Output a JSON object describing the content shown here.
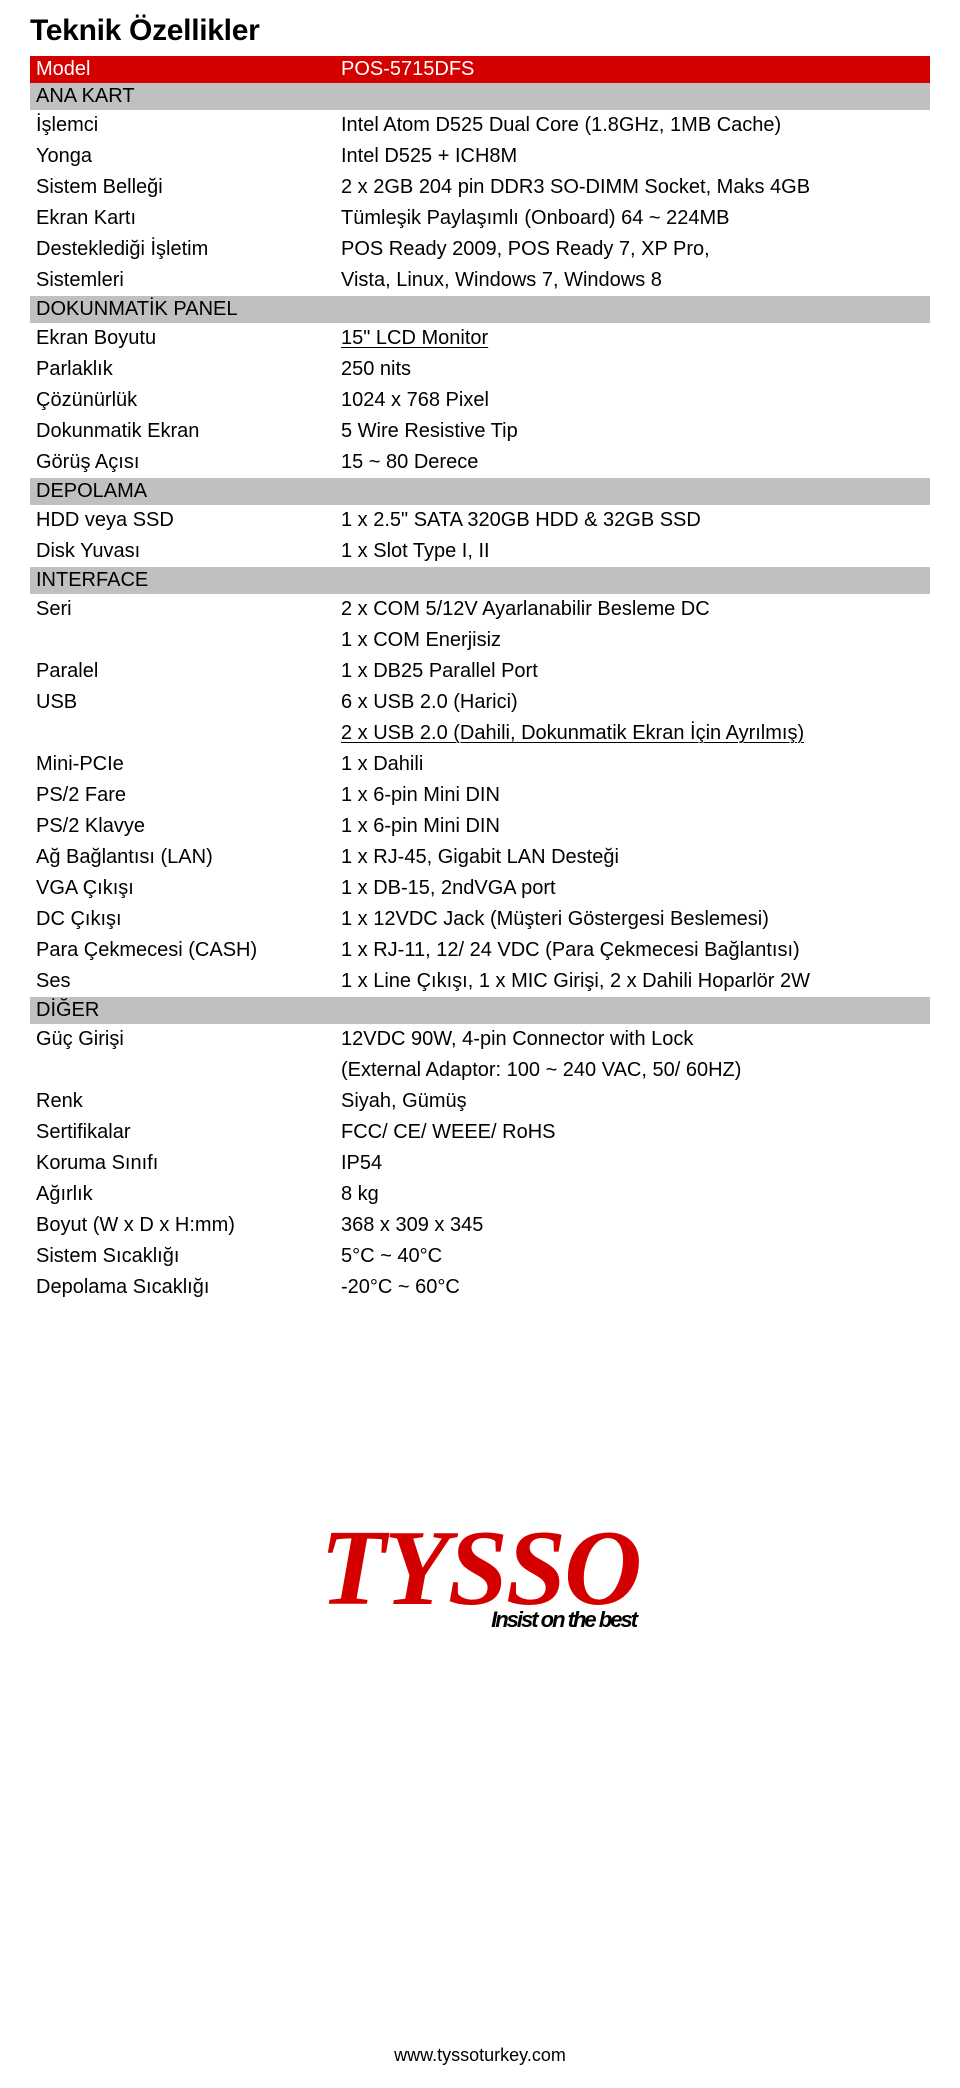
{
  "title": "Teknik Özellikler",
  "header": {
    "label": "Model",
    "value": "POS-5715DFS"
  },
  "sections": [
    {
      "name": "ANA KART",
      "rows": [
        {
          "label": "İşlemci",
          "value": "Intel Atom D525 Dual Core (1.8GHz, 1MB Cache)"
        },
        {
          "label": "Yonga",
          "value": "Intel D525 + ICH8M"
        },
        {
          "label": "Sistem Belleği",
          "value": "2 x 2GB 204 pin DDR3 SO-DIMM Socket, Maks 4GB"
        },
        {
          "label": "Ekran Kartı",
          "value": "Tümleşik Paylaşımlı (Onboard) 64 ~ 224MB"
        },
        {
          "label": "Desteklediği İşletim",
          "value": "POS Ready 2009, POS Ready 7, XP Pro,"
        },
        {
          "label": "Sistemleri",
          "value": "Vista, Linux, Windows 7, Windows 8"
        }
      ]
    },
    {
      "name": "DOKUNMATİK PANEL",
      "rows": [
        {
          "label": "Ekran Boyutu",
          "value": "15\" LCD Monitor",
          "underline": true
        },
        {
          "label": "Parlaklık",
          "value": "250 nits"
        },
        {
          "label": "Çözünürlük",
          "value": "1024 x 768 Pixel"
        },
        {
          "label": "Dokunmatik Ekran",
          "value": "5 Wire Resistive Tip"
        },
        {
          "label": "Görüş Açısı",
          "value": "15 ~ 80 Derece"
        }
      ]
    },
    {
      "name": "DEPOLAMA",
      "rows": [
        {
          "label": "HDD veya SSD",
          "value": "1 x 2.5\" SATA 320GB HDD & 32GB SSD"
        },
        {
          "label": "Disk Yuvası",
          "value": "1 x Slot Type I, II"
        }
      ]
    },
    {
      "name": "INTERFACE",
      "rows": [
        {
          "label": "Seri",
          "value": "2 x COM 5/12V Ayarlanabilir Besleme DC"
        },
        {
          "label": "",
          "value": "1 x COM Enerjisiz"
        },
        {
          "label": "Paralel",
          "value": "1 x DB25 Parallel Port"
        },
        {
          "label": "USB",
          "value": "6 x USB 2.0 (Harici)"
        },
        {
          "label": "",
          "value": "2 x USB 2.0 (Dahili, Dokunmatik Ekran İçin Ayrılmış)",
          "underline": true
        },
        {
          "label": "Mini-PCIe",
          "value": "1 x Dahili"
        },
        {
          "label": "PS/2 Fare",
          "value": "1 x 6-pin Mini DIN"
        },
        {
          "label": "PS/2 Klavye",
          "value": "1 x 6-pin Mini DIN"
        },
        {
          "label": "Ağ Bağlantısı (LAN)",
          "value": "1 x RJ-45, Gigabit LAN Desteği"
        },
        {
          "label": "VGA Çıkışı",
          "value": "1 x DB-15, 2ndVGA port"
        },
        {
          "label": "DC Çıkışı",
          "value": "1 x 12VDC Jack (Müşteri Göstergesi Beslemesi)"
        },
        {
          "label": "Para Çekmecesi (CASH)",
          "value": "1 x RJ-11, 12/ 24 VDC (Para Çekmecesi Bağlantısı)"
        },
        {
          "label": "Ses",
          "value": "1 x Line Çıkışı, 1 x MIC Girişi, 2 x Dahili Hoparlör 2W"
        }
      ]
    },
    {
      "name": "DİĞER",
      "rows": [
        {
          "label": "Güç Girişi",
          "value": "12VDC 90W, 4-pin Connector with Lock"
        },
        {
          "label": "",
          "value": "(External Adaptor: 100 ~ 240 VAC, 50/ 60HZ)"
        },
        {
          "label": "Renk",
          "value": "Siyah, Gümüş"
        },
        {
          "label": "Sertifikalar",
          "value": "FCC/ CE/ WEEE/ RoHS"
        },
        {
          "label": "Koruma Sınıfı",
          "value": "IP54"
        },
        {
          "label": "Ağırlık",
          "value": "8 kg"
        },
        {
          "label": "Boyut (W x D x H:mm)",
          "value": "368 x 309 x 345"
        },
        {
          "label": "Sistem Sıcaklığı",
          "value": "5°C ~ 40°C"
        },
        {
          "label": "Depolama Sıcaklığı",
          "value": "-20°C ~ 60°C"
        }
      ]
    }
  ],
  "brand": {
    "name": "TYSSO",
    "tagline": "Insist on the best"
  },
  "footer_url": "www.tyssoturkey.com",
  "colors": {
    "accent": "#d40000",
    "section_bg": "#c0c0c0",
    "text": "#000000",
    "bg": "#ffffff"
  }
}
